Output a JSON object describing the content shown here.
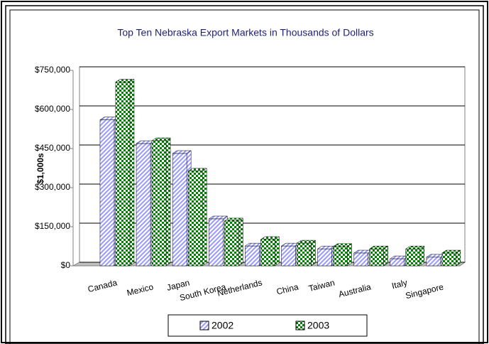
{
  "chart_data": {
    "type": "bar",
    "title": "Top Ten Nebraska Export Markets in Thousands of Dollars",
    "y_label": "$1,000s",
    "categories": [
      "Canada",
      "Mexico",
      "Japan",
      "South Korea",
      "Netherlands",
      "China",
      "Taiwan",
      "Australia",
      "Italy",
      "Singapore"
    ],
    "series": [
      {
        "name": "2002",
        "color": "#9999ff",
        "values": [
          560000,
          469000,
          431000,
          180000,
          76000,
          76000,
          65000,
          49000,
          27000,
          33000
        ]
      },
      {
        "name": "2003",
        "color": "#008000",
        "values": [
          705000,
          480000,
          363000,
          172000,
          101000,
          87000,
          74000,
          65000,
          65000,
          49000
        ]
      }
    ],
    "ylim": [
      0,
      750000
    ],
    "yticks": [
      {
        "value": 0,
        "label": "$0"
      },
      {
        "value": 150000,
        "label": "$150,000"
      },
      {
        "value": 300000,
        "label": "$300,000"
      },
      {
        "value": 450000,
        "label": "$450,000"
      },
      {
        "value": 600000,
        "label": "$600,000"
      },
      {
        "value": 750000,
        "label": "$750,000"
      }
    ],
    "grid": true,
    "legend": "bottom"
  }
}
